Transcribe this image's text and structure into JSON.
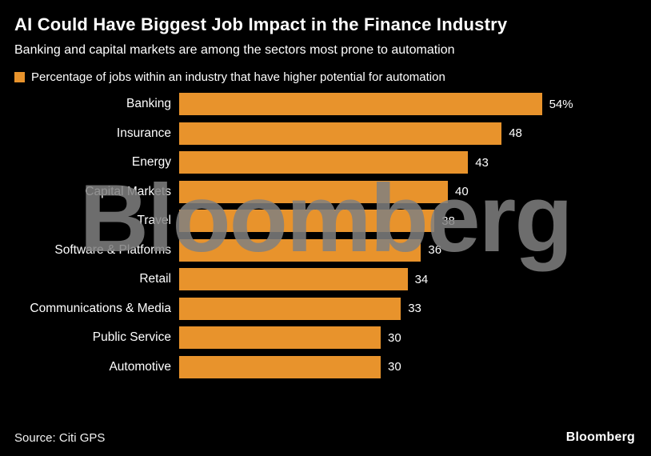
{
  "header": {
    "title": "AI Could Have Biggest Job Impact in the Finance Industry",
    "subtitle": "Banking and capital markets are among the sectors most prone to automation"
  },
  "legend": {
    "label": "Percentage of jobs within an industry that have higher potential for automation",
    "color": "#E8932C"
  },
  "chart_data": {
    "type": "bar",
    "orientation": "horizontal",
    "title": "AI Could Have Biggest Job Impact in the Finance Industry",
    "subtitle": "Banking and capital markets are among the sectors most prone to automation",
    "series_label": "Percentage of jobs within an industry that have higher potential for automation",
    "categories": [
      "Banking",
      "Insurance",
      "Energy",
      "Capital Markets",
      "Travel",
      "Software & Platforms",
      "Retail",
      "Communications & Media",
      "Public Service",
      "Automotive"
    ],
    "values": [
      54,
      48,
      43,
      40,
      38,
      36,
      34,
      33,
      30,
      30
    ],
    "value_labels": [
      "54%",
      "48",
      "43",
      "40",
      "38",
      "36",
      "34",
      "33",
      "30",
      "30"
    ],
    "xlim": [
      0,
      54
    ],
    "bar_color": "#E8932C",
    "grid": false,
    "legend_position": "top-left"
  },
  "watermark": "Bloomberg",
  "footer": {
    "source": "Source: Citi GPS",
    "brand": "Bloomberg"
  }
}
